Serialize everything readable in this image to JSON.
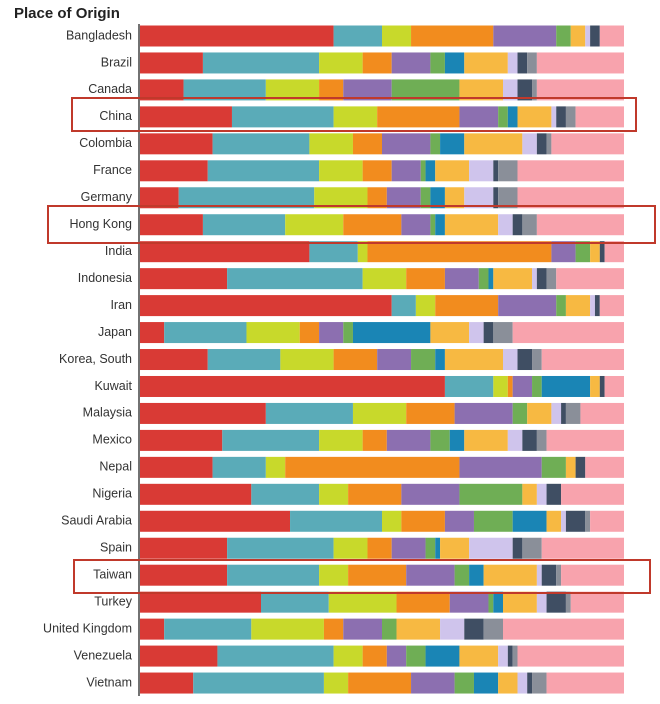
{
  "chart_data": {
    "type": "stacked_barh",
    "title": "Place of Origin",
    "categories": [
      "Bangladesh",
      "Brazil",
      "Canada",
      "China",
      "Colombia",
      "France",
      "Germany",
      "Hong Kong",
      "India",
      "Indonesia",
      "Iran",
      "Japan",
      "Korea, South",
      "Kuwait",
      "Malaysia",
      "Mexico",
      "Nepal",
      "Nigeria",
      "Saudi Arabia",
      "Spain",
      "Taiwan",
      "Turkey",
      "United Kingdom",
      "Venezuela",
      "Vietnam"
    ],
    "xlim": [
      0,
      100
    ],
    "series": [
      {
        "color": "#d93a35",
        "values": [
          40,
          13,
          9,
          19,
          15,
          14,
          8,
          13,
          35,
          18,
          52,
          5,
          14,
          63,
          26,
          17,
          15,
          23,
          31,
          18,
          18,
          25,
          5,
          16,
          11
        ]
      },
      {
        "color": "#5aabb8",
        "values": [
          10,
          24,
          17,
          21,
          20,
          23,
          28,
          17,
          10,
          28,
          5,
          17,
          15,
          10,
          18,
          20,
          11,
          14,
          19,
          22,
          19,
          14,
          18,
          24,
          27
        ]
      },
      {
        "color": "#c8d92b",
        "values": [
          6,
          9,
          11,
          9,
          9,
          9,
          11,
          12,
          2,
          9,
          4,
          11,
          11,
          3,
          11,
          9,
          4,
          6,
          4,
          7,
          6,
          14,
          15,
          6,
          5
        ]
      },
      {
        "color": "#f28c1e",
        "values": [
          17,
          6,
          5,
          17,
          6,
          6,
          4,
          12,
          38,
          8,
          13,
          4,
          9,
          1,
          10,
          5,
          36,
          11,
          9,
          5,
          12,
          11,
          4,
          5,
          13
        ]
      },
      {
        "color": "#8c6fb0",
        "values": [
          13,
          8,
          10,
          8,
          10,
          6,
          7,
          6,
          5,
          7,
          12,
          5,
          7,
          4,
          12,
          9,
          17,
          12,
          6,
          7,
          10,
          8,
          8,
          4,
          9
        ]
      },
      {
        "color": "#6fae55",
        "values": [
          3,
          3,
          14,
          2,
          2,
          1,
          2,
          1,
          3,
          2,
          2,
          2,
          5,
          2,
          3,
          4,
          5,
          13,
          8,
          2,
          3,
          1,
          3,
          4,
          4
        ]
      },
      {
        "color": "#1a85b5",
        "values": [
          0,
          4,
          0,
          2,
          5,
          2,
          3,
          2,
          0,
          1,
          0,
          16,
          2,
          10,
          0,
          3,
          0,
          0,
          7,
          1,
          3,
          2,
          0,
          7,
          5
        ]
      },
      {
        "color": "#f7b942",
        "values": [
          3,
          9,
          9,
          7,
          12,
          7,
          4,
          11,
          2,
          8,
          5,
          8,
          12,
          2,
          5,
          9,
          2,
          3,
          3,
          6,
          11,
          7,
          9,
          8,
          4
        ]
      },
      {
        "color": "#cfc4ec",
        "values": [
          1,
          2,
          3,
          1,
          3,
          5,
          6,
          3,
          0,
          1,
          1,
          3,
          3,
          0,
          2,
          3,
          0,
          2,
          1,
          9,
          1,
          2,
          5,
          2,
          2
        ]
      },
      {
        "color": "#3f4e63",
        "values": [
          2,
          2,
          3,
          2,
          2,
          1,
          1,
          2,
          1,
          2,
          1,
          2,
          3,
          1,
          1,
          3,
          2,
          3,
          4,
          2,
          3,
          4,
          4,
          1,
          1
        ]
      },
      {
        "color": "#8a8f99",
        "values": [
          0,
          2,
          1,
          2,
          1,
          4,
          4,
          3,
          0,
          2,
          0,
          4,
          2,
          0,
          3,
          2,
          0,
          0,
          1,
          4,
          1,
          1,
          4,
          1,
          3
        ]
      },
      {
        "color": "#f8a3ad",
        "values": [
          5,
          18,
          18,
          10,
          15,
          22,
          22,
          18,
          4,
          14,
          5,
          23,
          17,
          4,
          9,
          16,
          8,
          13,
          7,
          17,
          13,
          11,
          25,
          22,
          16
        ]
      }
    ]
  }
}
